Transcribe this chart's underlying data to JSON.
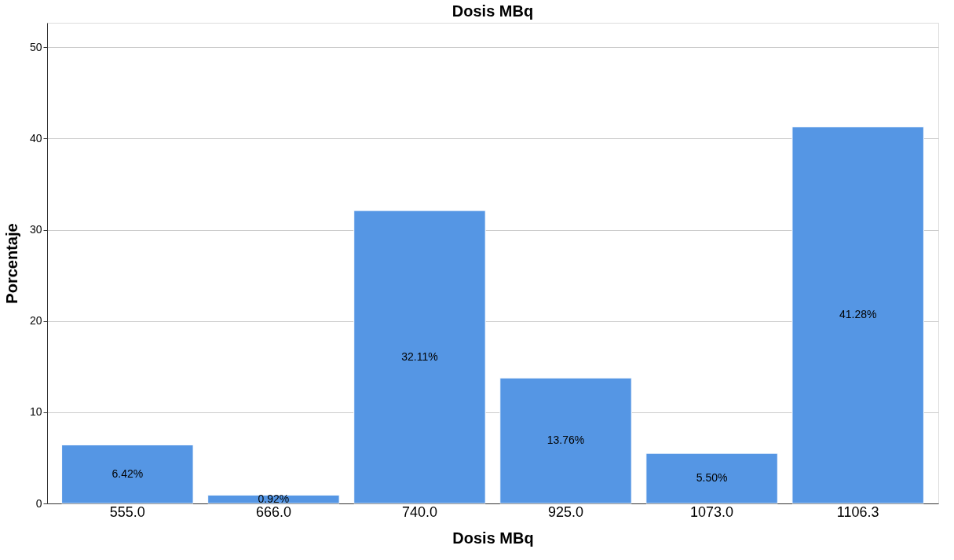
{
  "chart_data": {
    "type": "bar",
    "title": "Dosis MBq",
    "xlabel": "Dosis MBq",
    "ylabel": "Porcentaje",
    "categories": [
      "555.0",
      "666.0",
      "740.0",
      "925.0",
      "1073.0",
      "1106.3"
    ],
    "values": [
      6.42,
      0.92,
      32.11,
      13.76,
      5.5,
      41.28
    ],
    "value_labels": [
      "6.42%",
      "0.92%",
      "32.11%",
      "13.76%",
      "5.50%",
      "41.28%"
    ],
    "color": "#5596e4",
    "ylim": [
      0,
      52.7
    ],
    "yticks": [
      0,
      10,
      20,
      30,
      40,
      50
    ],
    "grid": "y"
  }
}
